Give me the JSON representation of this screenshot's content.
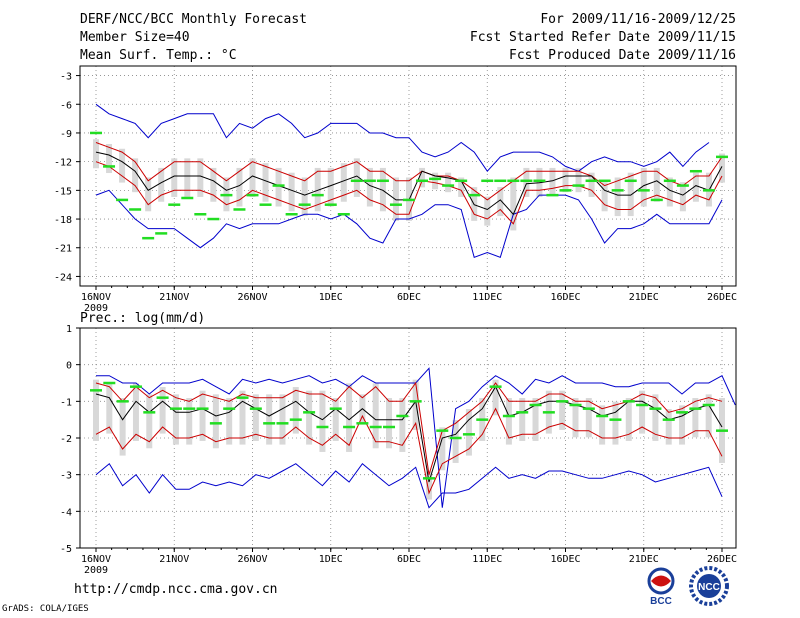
{
  "header": {
    "title": "DERF/NCC/BCC Monthly Forecast",
    "member_size": "Member Size=40",
    "variable_1": "Mean Surf. Temp.: °C",
    "period": "For 2009/11/16-2009/12/25",
    "started": "Fcst Started Refer Date 2009/11/15",
    "produced": "Fcst Produced Date 2009/11/16"
  },
  "variable_2": "Prec.: log(mm/d)",
  "footer": {
    "url": "http://cmdp.ncc.cma.gov.cn",
    "credit": "GrADS: COLA/IGES"
  },
  "logos": {
    "bcc": "BCC",
    "ncc": "NCC"
  },
  "colors": {
    "blue": "#0000cc",
    "red": "#cc0000",
    "green": "#22dd22",
    "box": "#d8d8d8",
    "grid": "#888888"
  },
  "chart_data": [
    {
      "type": "line",
      "title": "Mean Surf. Temp.: °C",
      "ylim": [
        -25,
        -2
      ],
      "yticks": [
        -3,
        -6,
        -9,
        -12,
        -15,
        -18,
        -21,
        -24
      ],
      "xticks": [
        "16NOV",
        "21NOV",
        "26NOV",
        "1DEC",
        "6DEC",
        "11DEC",
        "16DEC",
        "21DEC",
        "26DEC"
      ],
      "xtick_year": "2009",
      "x_days": 40,
      "series": [
        {
          "name": "max",
          "color": "blue",
          "values": [
            -6,
            -7,
            -7.5,
            -8,
            -9.5,
            -8,
            -7.5,
            -7,
            -7,
            -7,
            -9.5,
            -8,
            -8.5,
            -7.5,
            -7,
            -8,
            -9.5,
            -9,
            -8,
            -8,
            -8,
            -9,
            -9,
            -9.5,
            -9.5,
            -11,
            -11.5,
            -11,
            -10,
            -11,
            -13,
            -11.5,
            -11,
            -11,
            -11,
            -11.5,
            -12.5,
            -13,
            -12,
            -11.5,
            -12,
            -12,
            -12.5,
            -12,
            -11,
            -12.5,
            -11,
            -10
          ]
        },
        {
          "name": "upper",
          "color": "red",
          "values": [
            -10,
            -10.5,
            -11,
            -12,
            -14,
            -13,
            -12,
            -12,
            -12,
            -13,
            -14,
            -13,
            -12,
            -12.5,
            -13,
            -13.5,
            -14,
            -13,
            -13,
            -12.5,
            -12,
            -13,
            -13,
            -14,
            -14,
            -13,
            -13.5,
            -13.5,
            -14,
            -15,
            -16,
            -15,
            -14,
            -13,
            -13,
            -13,
            -13,
            -13,
            -13.5,
            -14.5,
            -14,
            -13.5,
            -13,
            -13,
            -14,
            -14.5,
            -13.5,
            -13.5,
            -11.5
          ]
        },
        {
          "name": "mean",
          "color": "black",
          "values": [
            -11,
            -11.3,
            -12,
            -13,
            -15,
            -14.2,
            -13.5,
            -13.5,
            -13.5,
            -14,
            -15,
            -14.5,
            -13.5,
            -14,
            -14.5,
            -15,
            -15.5,
            -15,
            -14.5,
            -14,
            -13.5,
            -14.5,
            -15,
            -16,
            -16,
            -13,
            -13.5,
            -13.7,
            -14,
            -16.5,
            -17,
            -16,
            -17.5,
            -14.3,
            -14.2,
            -14,
            -13.5,
            -13.5,
            -13.5,
            -15,
            -15.5,
            -15.5,
            -14.5,
            -14,
            -15,
            -15.5,
            -14.5,
            -15,
            -12.5
          ]
        },
        {
          "name": "lower",
          "color": "red",
          "values": [
            -12,
            -12.5,
            -13.5,
            -14.5,
            -16.5,
            -15.5,
            -15,
            -15,
            -15,
            -15.5,
            -16.5,
            -16,
            -15,
            -15.5,
            -16,
            -16.5,
            -17,
            -16.5,
            -16,
            -15.5,
            -15,
            -16,
            -16.5,
            -17.5,
            -17.5,
            -14,
            -14.2,
            -14.5,
            -15,
            -17.5,
            -18,
            -17,
            -18.5,
            -15,
            -15,
            -14.8,
            -14.5,
            -14.5,
            -15,
            -16.5,
            -17,
            -17,
            -16,
            -15.5,
            -16,
            -16.5,
            -15.5,
            -16,
            -13.5
          ]
        },
        {
          "name": "min",
          "color": "blue",
          "values": [
            -15.5,
            -15,
            -16.5,
            -18,
            -19,
            -19,
            -19,
            -20,
            -21,
            -20,
            -18.5,
            -19,
            -18.5,
            -18.5,
            -18.5,
            -18,
            -17.5,
            -17.5,
            -18,
            -17.5,
            -18.5,
            -20,
            -20.5,
            -18,
            -18,
            -17.5,
            -16.5,
            -16.5,
            -17,
            -22,
            -21.5,
            -22,
            -17.5,
            -17,
            -15.5,
            -15.5,
            -15.5,
            -16,
            -18,
            -20.5,
            -19,
            -19,
            -18.5,
            -17.5,
            -18.5,
            -18.5,
            -18.5,
            -18.5,
            -16
          ]
        },
        {
          "name": "median",
          "color": "green",
          "values": [
            -9,
            -12.5,
            -16,
            -17,
            -20,
            -19.5,
            -16.5,
            -15.8,
            -17.5,
            -18,
            -15.5,
            -17,
            -15.5,
            -16.5,
            -14.5,
            -17.5,
            -16.5,
            -15.5,
            -16.5,
            -17.5,
            -14,
            -14,
            -14,
            -16.5,
            -16,
            -14,
            -13.8,
            -14.5,
            -14,
            -15.5,
            -14,
            -14,
            -14,
            -14,
            -14,
            -15.5,
            -15,
            -14.5,
            -14,
            -14,
            -15,
            -14,
            -15,
            -16,
            -14,
            -14.5,
            -13,
            -15,
            -11.5
          ]
        }
      ]
    },
    {
      "type": "line",
      "title": "Prec.: log(mm/d)",
      "ylim": [
        -5,
        1
      ],
      "yticks": [
        1,
        0,
        -1,
        -2,
        -3,
        -4,
        -5
      ],
      "xticks": [
        "16NOV",
        "21NOV",
        "26NOV",
        "1DEC",
        "6DEC",
        "11DEC",
        "16DEC",
        "21DEC",
        "26DEC"
      ],
      "xtick_year": "2009",
      "x_days": 40,
      "series": [
        {
          "name": "max",
          "color": "blue",
          "values": [
            -0.3,
            -0.3,
            -0.5,
            -0.5,
            -0.8,
            -0.5,
            -0.5,
            -0.5,
            -0.4,
            -0.6,
            -0.8,
            -0.4,
            -0.5,
            -0.4,
            -0.5,
            -0.4,
            -0.3,
            -0.5,
            -0.4,
            -0.6,
            -0.3,
            -0.5,
            -0.5,
            -0.5,
            -0.5,
            -0.1,
            -3.9,
            -1.2,
            -1,
            -0.6,
            -0.3,
            -0.5,
            -0.8,
            -0.4,
            -0.5,
            -0.3,
            -0.5,
            -0.5,
            -0.5,
            -0.6,
            -0.6,
            -0.5,
            -0.5,
            -0.5,
            -0.8,
            -0.5,
            -0.5,
            -0.3,
            -1.1
          ]
        },
        {
          "name": "upper",
          "color": "red",
          "values": [
            -0.5,
            -0.6,
            -1,
            -0.6,
            -0.9,
            -0.7,
            -0.9,
            -1,
            -0.8,
            -0.9,
            -1,
            -0.8,
            -0.9,
            -0.9,
            -0.9,
            -0.7,
            -0.8,
            -0.8,
            -1,
            -0.6,
            -0.9,
            -0.6,
            -1,
            -1,
            -0.5,
            -3,
            -1.8,
            -1.6,
            -1.3,
            -1,
            -0.5,
            -1,
            -1,
            -1,
            -0.8,
            -0.8,
            -1,
            -1,
            -1.2,
            -1.1,
            -1,
            -0.8,
            -0.9,
            -1.3,
            -1.2,
            -1,
            -0.9,
            -1
          ]
        },
        {
          "name": "mean",
          "color": "black",
          "values": [
            -0.8,
            -0.9,
            -1.5,
            -1,
            -1.3,
            -1,
            -1.3,
            -1.3,
            -1.2,
            -1.4,
            -1.3,
            -1,
            -1.2,
            -1.4,
            -1.2,
            -1,
            -1.3,
            -1.5,
            -1.2,
            -1.5,
            -1.2,
            -1.5,
            -1.5,
            -1.5,
            -1,
            -3.2,
            -2,
            -1.9,
            -1.5,
            -1.2,
            -0.6,
            -1.4,
            -1.3,
            -1.1,
            -1,
            -1,
            -1.1,
            -1.2,
            -1.4,
            -1.3,
            -1,
            -1,
            -1.2,
            -1.5,
            -1.4,
            -1.2,
            -1.1,
            -1.7
          ]
        },
        {
          "name": "lower",
          "color": "red",
          "values": [
            -1.9,
            -1.7,
            -2.3,
            -1.9,
            -2.1,
            -1.7,
            -2,
            -2,
            -1.9,
            -2.1,
            -2,
            -2,
            -1.9,
            -2,
            -2,
            -1.7,
            -2,
            -2.2,
            -1.9,
            -2.2,
            -1.4,
            -2.1,
            -2.1,
            -2.2,
            -1.6,
            -3.5,
            -2.7,
            -2.5,
            -2.3,
            -1.9,
            -1.2,
            -2,
            -1.9,
            -1.9,
            -1.7,
            -1.6,
            -1.8,
            -1.8,
            -2,
            -2,
            -1.9,
            -1.7,
            -1.9,
            -2,
            -2,
            -1.8,
            -1.8,
            -2.5
          ]
        },
        {
          "name": "min",
          "color": "blue",
          "values": [
            -3,
            -2.7,
            -3.3,
            -3,
            -3.5,
            -3,
            -3.4,
            -3.4,
            -3.2,
            -3.3,
            -3.2,
            -3.3,
            -3,
            -3.1,
            -2.9,
            -2.7,
            -3,
            -3.3,
            -2.9,
            -3.2,
            -2.7,
            -3,
            -3.3,
            -3.1,
            -2.8,
            -3.9,
            -3.5,
            -3.5,
            -3.4,
            -3.1,
            -2.8,
            -3.1,
            -3,
            -3.1,
            -2.9,
            -2.9,
            -3,
            -3.1,
            -3.1,
            -3,
            -2.9,
            -3,
            -3.2,
            -3.1,
            -3,
            -2.9,
            -2.8,
            -3.6
          ]
        },
        {
          "name": "median",
          "color": "green",
          "values": [
            -0.7,
            -0.5,
            -1,
            -0.6,
            -1.3,
            -0.9,
            -1.2,
            -1.2,
            -1.2,
            -1.6,
            -1.2,
            -0.9,
            -1.2,
            -1.6,
            -1.6,
            -1.5,
            -1.3,
            -1.7,
            -1.2,
            -1.7,
            -1.6,
            -1.7,
            -1.7,
            -1.4,
            -1,
            -3.1,
            -1.8,
            -2,
            -1.9,
            -1.5,
            -0.6,
            -1.4,
            -1.3,
            -1.1,
            -1.3,
            -1,
            -1.1,
            -1.2,
            -1.4,
            -1.5,
            -1,
            -1.1,
            -1.2,
            -1.5,
            -1.3,
            -1.2,
            -1.1,
            -1.8
          ]
        }
      ]
    }
  ]
}
